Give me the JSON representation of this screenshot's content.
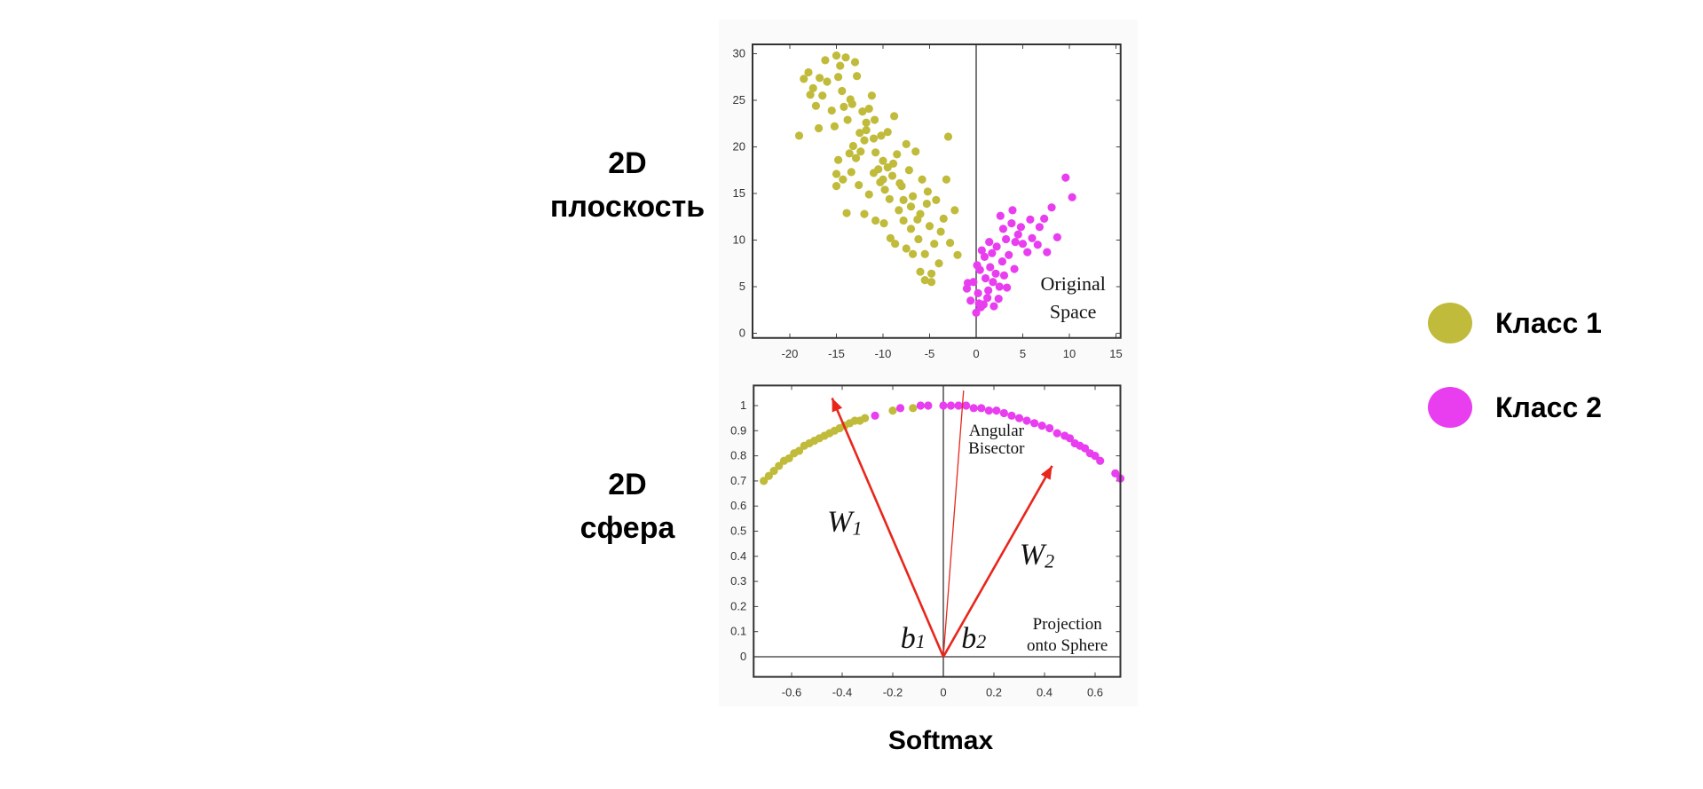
{
  "labels": {
    "plane": [
      "2D",
      "плоскость"
    ],
    "sphere": [
      "2D",
      "сфера"
    ],
    "softmax": "Softmax"
  },
  "legend": [
    {
      "label": "Класс 1",
      "color": "#c0bb3a"
    },
    {
      "label": "Класс 2",
      "color": "#e83ef0"
    }
  ],
  "chart_data": [
    {
      "type": "scatter",
      "annotation": [
        "Original",
        "Space"
      ],
      "xlim": [
        -24,
        15.5
      ],
      "ylim": [
        -0.5,
        31
      ],
      "xticks": [
        -20,
        -15,
        -10,
        -5,
        0,
        5,
        10,
        15
      ],
      "yticks": [
        0,
        5,
        10,
        15,
        20,
        25,
        30
      ],
      "grid": false,
      "vertical_line_x": 0,
      "series": [
        {
          "color": "#c0bb3a",
          "points": [
            [
              -19,
              21.2
            ],
            [
              -18.5,
              27.3
            ],
            [
              -18,
              28
            ],
            [
              -17.8,
              25.6
            ],
            [
              -17.5,
              26.3
            ],
            [
              -17.2,
              24.4
            ],
            [
              -16.8,
              27.4
            ],
            [
              -16.5,
              25.5
            ],
            [
              -16.2,
              29.3
            ],
            [
              -16,
              27
            ],
            [
              -15.5,
              23.9
            ],
            [
              -15.2,
              22.2
            ],
            [
              -15,
              29.8
            ],
            [
              -14.8,
              27.5
            ],
            [
              -14.6,
              28.7
            ],
            [
              -14.4,
              26
            ],
            [
              -14.2,
              24.3
            ],
            [
              -14,
              29.6
            ],
            [
              -13.8,
              22.9
            ],
            [
              -13.5,
              25.1
            ],
            [
              -13.3,
              24.6
            ],
            [
              -13,
              29.1
            ],
            [
              -12.8,
              27.6
            ],
            [
              -12.5,
              21.5
            ],
            [
              -12.2,
              23.8
            ],
            [
              -12,
              20.7
            ],
            [
              -14.8,
              18.6
            ],
            [
              -15,
              17.1
            ],
            [
              -15,
              15.8
            ],
            [
              -14.3,
              16.5
            ],
            [
              -13.6,
              19.3
            ],
            [
              -13.4,
              17.3
            ],
            [
              -12.9,
              18.8
            ],
            [
              -12.6,
              15.9
            ],
            [
              -11.8,
              22.6
            ],
            [
              -11.5,
              24.1
            ],
            [
              -11.2,
              25.5
            ],
            [
              -11,
              20.9
            ],
            [
              -10.8,
              19.4
            ],
            [
              -10.5,
              17.6
            ],
            [
              -10.3,
              16.2
            ],
            [
              -10,
              18.5
            ],
            [
              -9.8,
              15.4
            ],
            [
              -9.5,
              21.6
            ],
            [
              -9.3,
              14.4
            ],
            [
              -9,
              16.9
            ],
            [
              -8.8,
              23.3
            ],
            [
              -8.5,
              19.2
            ],
            [
              -8.3,
              13.2
            ],
            [
              -8,
              15.8
            ],
            [
              -7.8,
              12.1
            ],
            [
              -7.5,
              20.3
            ],
            [
              -7.2,
              17.5
            ],
            [
              -7,
              11.2
            ],
            [
              -6.8,
              14.7
            ],
            [
              -6.5,
              19.5
            ],
            [
              -6.2,
              10.1
            ],
            [
              -6,
              12.8
            ],
            [
              -5.8,
              16.5
            ],
            [
              -5.5,
              8.5
            ],
            [
              -5.3,
              13.9
            ],
            [
              -5,
              11.5
            ],
            [
              -4.8,
              6.4
            ],
            [
              -4.5,
              9.6
            ],
            [
              -4.3,
              14.3
            ],
            [
              -4,
              7.5
            ],
            [
              -3.8,
              10.9
            ],
            [
              -3.5,
              12.3
            ],
            [
              -3,
              21.1
            ],
            [
              -2.8,
              9.7
            ],
            [
              -2.3,
              13.2
            ],
            [
              -2,
              8.4
            ],
            [
              -11.5,
              14.9
            ],
            [
              -12,
              12.8
            ],
            [
              -10.8,
              12.1
            ],
            [
              -9.9,
              11.8
            ],
            [
              -9.2,
              10.2
            ],
            [
              -8.7,
              9.6
            ],
            [
              -7.5,
              9.1
            ],
            [
              -6.8,
              8.5
            ],
            [
              -6,
              6.6
            ],
            [
              -5.5,
              5.7
            ],
            [
              -4.8,
              5.5
            ],
            [
              -11,
              17.2
            ],
            [
              -10,
              16.5
            ],
            [
              -9.5,
              17.8
            ],
            [
              -8.9,
              18.2
            ],
            [
              -8.2,
              16.1
            ],
            [
              -7.8,
              14.3
            ],
            [
              -7,
              13.6
            ],
            [
              -6.3,
              12.2
            ],
            [
              -13.2,
              20.1
            ],
            [
              -12.4,
              19.5
            ],
            [
              -11.8,
              21.8
            ],
            [
              -10.9,
              22.9
            ],
            [
              -10.2,
              21.2
            ],
            [
              -16.9,
              22
            ],
            [
              -13.9,
              12.9
            ],
            [
              -3.2,
              16.5
            ],
            [
              -5.2,
              15.2
            ]
          ]
        },
        {
          "color": "#e83ef0",
          "points": [
            [
              0,
              2.2
            ],
            [
              0.5,
              2.8
            ],
            [
              -0.6,
              3.5
            ],
            [
              -1,
              4.8
            ],
            [
              -0.3,
              5.5
            ],
            [
              0.2,
              4.3
            ],
            [
              0.8,
              3.1
            ],
            [
              1,
              5.9
            ],
            [
              1.3,
              4.6
            ],
            [
              1.5,
              7.1
            ],
            [
              1.8,
              5.5
            ],
            [
              2.1,
              6.4
            ],
            [
              2.4,
              3.7
            ],
            [
              0.4,
              6.8
            ],
            [
              0.6,
              8.9
            ],
            [
              0.9,
              8.2
            ],
            [
              1.7,
              8.6
            ],
            [
              2.2,
              9.3
            ],
            [
              2.8,
              7.7
            ],
            [
              3.2,
              10.1
            ],
            [
              3.5,
              8.4
            ],
            [
              3.8,
              11.8
            ],
            [
              2.6,
              12.6
            ],
            [
              3.9,
              13.2
            ],
            [
              4.5,
              10.6
            ],
            [
              5,
              9.6
            ],
            [
              5.5,
              8.7
            ],
            [
              6,
              10.2
            ],
            [
              6.8,
              11.4
            ],
            [
              7.3,
              12.3
            ],
            [
              8.1,
              13.5
            ],
            [
              8.7,
              10.3
            ],
            [
              9.6,
              16.7
            ],
            [
              10.3,
              14.6
            ],
            [
              7.6,
              8.7
            ],
            [
              6.6,
              9.5
            ],
            [
              4.2,
              9.8
            ],
            [
              3,
              6.2
            ],
            [
              2.5,
              5
            ],
            [
              1.2,
              3.8
            ],
            [
              0.3,
              3.2
            ],
            [
              -0.9,
              5.4
            ],
            [
              1.9,
              2.9
            ],
            [
              0.1,
              7.3
            ],
            [
              3.3,
              4.9
            ],
            [
              4.1,
              6.9
            ],
            [
              2.9,
              11.2
            ],
            [
              1.4,
              9.8
            ],
            [
              5.8,
              12.2
            ],
            [
              4.8,
              11.4
            ]
          ]
        }
      ]
    },
    {
      "type": "scatter",
      "annotation": [
        "Projection",
        "onto Sphere"
      ],
      "bisector_label": [
        "Angular",
        "Bisector"
      ],
      "xlim": [
        -0.75,
        0.7
      ],
      "ylim": [
        -0.08,
        1.08
      ],
      "xticks": [
        -0.6,
        -0.4,
        -0.2,
        0,
        0.2,
        0.4,
        0.6
      ],
      "yticks": [
        0,
        0.1,
        0.2,
        0.3,
        0.4,
        0.5,
        0.6,
        0.7,
        0.8,
        0.9,
        1
      ],
      "grid": false,
      "series": [
        {
          "color": "#c0bb3a",
          "points": [
            [
              -0.71,
              0.7
            ],
            [
              -0.69,
              0.72
            ],
            [
              -0.67,
              0.74
            ],
            [
              -0.65,
              0.76
            ],
            [
              -0.63,
              0.78
            ],
            [
              -0.61,
              0.79
            ],
            [
              -0.59,
              0.81
            ],
            [
              -0.57,
              0.82
            ],
            [
              -0.55,
              0.84
            ],
            [
              -0.53,
              0.85
            ],
            [
              -0.51,
              0.86
            ],
            [
              -0.49,
              0.87
            ],
            [
              -0.47,
              0.88
            ],
            [
              -0.45,
              0.89
            ],
            [
              -0.43,
              0.9
            ],
            [
              -0.41,
              0.91
            ],
            [
              -0.39,
              0.92
            ],
            [
              -0.37,
              0.93
            ],
            [
              -0.35,
              0.94
            ],
            [
              -0.33,
              0.94
            ],
            [
              -0.31,
              0.95
            ],
            [
              -0.2,
              0.98
            ],
            [
              -0.12,
              0.99
            ]
          ]
        },
        {
          "color": "#e83ef0",
          "points": [
            [
              -0.27,
              0.96
            ],
            [
              -0.17,
              0.99
            ],
            [
              -0.09,
              1.0
            ],
            [
              -0.06,
              1.0
            ],
            [
              0,
              1.0
            ],
            [
              0.03,
              1.0
            ],
            [
              0.06,
              1.0
            ],
            [
              0.09,
              1.0
            ],
            [
              0.12,
              0.99
            ],
            [
              0.15,
              0.99
            ],
            [
              0.18,
              0.98
            ],
            [
              0.21,
              0.98
            ],
            [
              0.24,
              0.97
            ],
            [
              0.27,
              0.96
            ],
            [
              0.3,
              0.95
            ],
            [
              0.33,
              0.94
            ],
            [
              0.36,
              0.93
            ],
            [
              0.39,
              0.92
            ],
            [
              0.42,
              0.91
            ],
            [
              0.45,
              0.89
            ],
            [
              0.48,
              0.88
            ],
            [
              0.5,
              0.87
            ],
            [
              0.52,
              0.85
            ],
            [
              0.54,
              0.84
            ],
            [
              0.56,
              0.83
            ],
            [
              0.58,
              0.81
            ],
            [
              0.6,
              0.8
            ],
            [
              0.62,
              0.78
            ],
            [
              0.68,
              0.73
            ],
            [
              0.7,
              0.71
            ]
          ]
        }
      ],
      "vectors": [
        {
          "label": "W",
          "sub": "1",
          "bias": "b",
          "bias_sub": "1",
          "to": [
            -0.44,
            1.03
          ],
          "color": "#e8261c"
        },
        {
          "label": "W",
          "sub": "2",
          "bias": "b",
          "bias_sub": "2",
          "to": [
            0.43,
            0.76
          ],
          "color": "#e8261c"
        }
      ],
      "bisector_to": [
        0.08,
        1.06
      ]
    }
  ]
}
